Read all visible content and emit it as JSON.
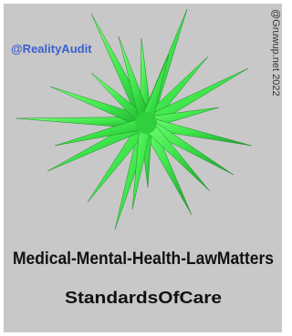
{
  "handle": "@RealityAudit",
  "watermark": "@Gruwup.net 2022",
  "headline": "Medical-Mental-Health-LawMatters",
  "subheadline": "StandardsOfCare"
}
